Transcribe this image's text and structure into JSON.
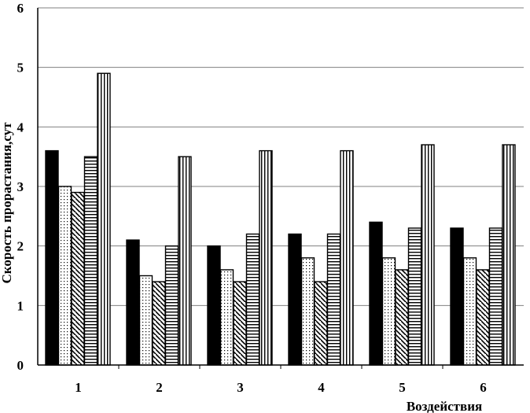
{
  "chart_data": {
    "type": "bar",
    "xlabel": "Воздействия",
    "ylabel": "Скорость прорастания,сут",
    "ylim": [
      0,
      6
    ],
    "yticks": [
      "0",
      "1",
      "2",
      "3",
      "4",
      "5",
      "6"
    ],
    "grid": true,
    "legend": "none",
    "categories": [
      "1",
      "2",
      "3",
      "4",
      "5",
      "6"
    ],
    "series": [
      {
        "pattern": "solid",
        "values": [
          3.6,
          2.1,
          2.0,
          2.2,
          2.4,
          2.3
        ]
      },
      {
        "pattern": "dots",
        "values": [
          3.0,
          1.5,
          1.6,
          1.8,
          1.8,
          1.8
        ]
      },
      {
        "pattern": "diagonal",
        "values": [
          2.9,
          1.4,
          1.4,
          1.4,
          1.6,
          1.6
        ]
      },
      {
        "pattern": "horizontal",
        "values": [
          3.5,
          2.0,
          2.2,
          2.2,
          2.3,
          2.3
        ]
      },
      {
        "pattern": "vertical",
        "values": [
          4.9,
          3.5,
          3.6,
          3.6,
          3.7,
          3.7
        ]
      }
    ]
  }
}
